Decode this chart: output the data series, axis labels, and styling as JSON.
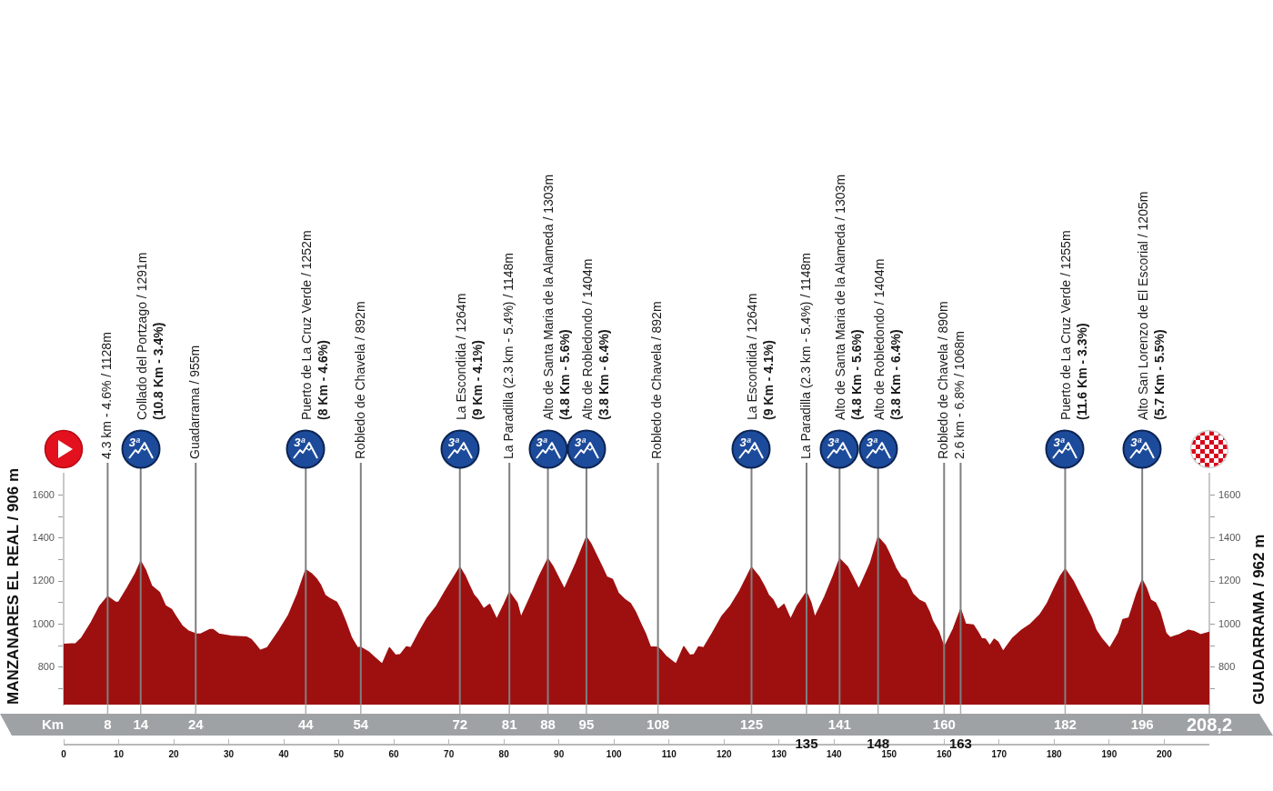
{
  "chart_data": {
    "type": "area",
    "color": "#9e1010",
    "ylabel": "MANZANARES EL REAL / 906 m",
    "y2label": "GUADARRAMA / 962 m",
    "x2label": "Km",
    "x": [
      0,
      2.2,
      3.3,
      5.0,
      6.6,
      8,
      9.4,
      10.0,
      11.6,
      13.0,
      14,
      14.9,
      16.0,
      17.4,
      18.5,
      19.6,
      20.4,
      21.5,
      22.6,
      24,
      24.9,
      26.6,
      27.1,
      28.2,
      30.4,
      33.2,
      34.0,
      34.8,
      35.7,
      37.0,
      39.2,
      40.9,
      42.5,
      44,
      45.1,
      45.9,
      46.7,
      47.5,
      48.3,
      49.6,
      50.4,
      51.2,
      52.3,
      53.4,
      54,
      55.4,
      56.2,
      57.9,
      59.2,
      60.3,
      61.2,
      62.3,
      63.1,
      64.5,
      66.1,
      67.8,
      69.4,
      72,
      72.9,
      73.7,
      74.5,
      75.3,
      76.3,
      77.4,
      78.7,
      79.9,
      81,
      82.4,
      83.1,
      84.8,
      86.5,
      88,
      88.9,
      90.0,
      91.0,
      93.1,
      95,
      95.8,
      96.6,
      97.8,
      98.7,
      99.7,
      100.8,
      101.9,
      103.0,
      103.9,
      104.9,
      105.8,
      106.6,
      108,
      108.5,
      109.4,
      111.3,
      112.7,
      113.8,
      114.6,
      115.4,
      116.3,
      117.9,
      119.6,
      121.2,
      122.9,
      125,
      126.4,
      127.3,
      128.1,
      128.9,
      129.8,
      130.9,
      132.1,
      133.3,
      135,
      135.8,
      136.5,
      138.3,
      139.9,
      141,
      142.4,
      143.4,
      144.5,
      146.6,
      148,
      149.3,
      150.1,
      151.2,
      152.2,
      153.1,
      154.3,
      155.4,
      156.5,
      157.3,
      157.9,
      159.0,
      160,
      161.7,
      163,
      163.9,
      165.3,
      166.1,
      166.8,
      167.5,
      168.3,
      169.1,
      169.8,
      170.7,
      172.4,
      174.1,
      175.7,
      177.4,
      178.8,
      180.1,
      181.2,
      182,
      183.5,
      184.6,
      185.7,
      186.8,
      187.6,
      188.7,
      190.1,
      191.7,
      192.5,
      193.6,
      195.0,
      196,
      196.7,
      197.5,
      198.4,
      199.2,
      200.3,
      201.1,
      201.9,
      202.7,
      204.4,
      205.5,
      206.6,
      208.2
    ],
    "values": [
      906,
      909,
      937,
      1007,
      1085,
      1128,
      1102,
      1102,
      1170,
      1233,
      1291,
      1250,
      1177,
      1148,
      1085,
      1068,
      1036,
      993,
      969,
      955,
      954,
      975,
      975,
      954,
      944,
      940,
      930,
      907,
      878,
      890,
      972,
      1043,
      1141,
      1252,
      1233,
      1212,
      1181,
      1134,
      1120,
      1102,
      1064,
      1014,
      937,
      890,
      892,
      871,
      852,
      814,
      890,
      855,
      859,
      895,
      890,
      958,
      1029,
      1085,
      1156,
      1264,
      1226,
      1181,
      1137,
      1113,
      1071,
      1092,
      1022,
      1085,
      1148,
      1099,
      1031,
      1127,
      1226,
      1303,
      1268,
      1212,
      1163,
      1283,
      1404,
      1374,
      1332,
      1268,
      1219,
      1209,
      1144,
      1116,
      1096,
      1057,
      1000,
      951,
      895,
      892,
      880,
      852,
      814,
      895,
      855,
      859,
      895,
      890,
      958,
      1036,
      1085,
      1156,
      1264,
      1219,
      1177,
      1134,
      1113,
      1068,
      1092,
      1022,
      1085,
      1148,
      1099,
      1031,
      1127,
      1226,
      1303,
      1268,
      1219,
      1163,
      1283,
      1404,
      1367,
      1325,
      1261,
      1219,
      1205,
      1141,
      1113,
      1099,
      1057,
      1014,
      965,
      890,
      979,
      1068,
      1000,
      996,
      965,
      933,
      930,
      899,
      930,
      916,
      873,
      933,
      972,
      1000,
      1043,
      1099,
      1170,
      1226,
      1255,
      1198,
      1141,
      1085,
      1029,
      972,
      930,
      888,
      958,
      1021,
      1029,
      1141,
      1205,
      1170,
      1113,
      1099,
      1057,
      958,
      937,
      944,
      951,
      972,
      965,
      951,
      962
    ],
    "xlim": [
      0,
      208.2
    ],
    "xticks": [
      0,
      10,
      20,
      30,
      40,
      50,
      60,
      70,
      80,
      90,
      100,
      110,
      120,
      130,
      140,
      150,
      160,
      170,
      180,
      190,
      200
    ],
    "x2lim": [
      0,
      208.2
    ],
    "x2ticks": [
      8,
      14,
      24,
      44,
      54,
      72,
      81,
      88,
      95,
      108,
      125,
      141,
      160,
      182,
      196,
      {
        "value": 208.2,
        "label": "208,2"
      }
    ],
    "ylim": [
      626,
      1700
    ],
    "yticks": [
      {
        "value": 700,
        "label": null
      },
      800,
      {
        "value": 900,
        "label": null
      },
      1000,
      {
        "value": 1100,
        "label": null
      },
      1200,
      {
        "value": 1300,
        "label": null
      },
      1400,
      {
        "value": 1500,
        "label": null
      },
      1600
    ],
    "y2lim": [
      626,
      1700
    ],
    "y2ticks": [
      {
        "value": 700,
        "label": null
      },
      800,
      {
        "value": 900,
        "label": null
      },
      1000,
      {
        "value": 1100,
        "label": null
      },
      1200,
      {
        "value": 1300,
        "label": null
      },
      1400,
      {
        "value": 1500,
        "label": null
      },
      1600
    ],
    "ref_lines": [
      {
        "axis": "x",
        "value": 8,
        "label": "4.3 km - 4.6% / 1128m",
        "color": "#7f7f7f"
      },
      {
        "axis": "x",
        "value": 14,
        "label": "Collado del Portzago / 1291m\n(10.8 Km - 3.4%)",
        "color": "#7f7f7f"
      },
      {
        "axis": "x",
        "value": 24,
        "label": "Guadarrama / 955m",
        "color": "#7f7f7f"
      },
      {
        "axis": "x",
        "value": 44,
        "label": "Puerto de La Cruz Verde / 1252m\n(8 Km - 4.6%)",
        "color": "#7f7f7f"
      },
      {
        "axis": "x",
        "value": 54,
        "label": "Robledo de Chavela / 892m",
        "color": "#7f7f7f"
      },
      {
        "axis": "x",
        "value": 72,
        "label": "La Escondida / 1264m\n(9 Km - 4.1%)",
        "color": "#7f7f7f"
      },
      {
        "axis": "x",
        "value": 81,
        "label": "La Paradilla (2.3 km - 5.4%) / 1148m",
        "color": "#7f7f7f"
      },
      {
        "axis": "x",
        "value": 88,
        "label": "Alto de Santa Maria de la Alameda / 1303m\n(4.8 Km - 5.6%)",
        "color": "#7f7f7f"
      },
      {
        "axis": "x",
        "value": 95,
        "label": "Alto de Robledondo / 1404m\n(3.8 Km - 6.4%)",
        "color": "#7f7f7f"
      },
      {
        "axis": "x",
        "value": 108,
        "label": "Robledo de Chavela / 892m",
        "color": "#7f7f7f"
      },
      {
        "axis": "x",
        "value": 125,
        "label": "La Escondida / 1264m\n(9 Km - 4.1%)",
        "color": "#7f7f7f"
      },
      {
        "axis": "x",
        "value": 135,
        "label": "La Paradilla (2.3 km - 5.4%) / 1148m",
        "color": "#7f7f7f"
      },
      {
        "axis": "x",
        "value": 141,
        "label": "Alto de Santa Maria de la Alameda / 1303m\n(4.8 Km - 5.6%)",
        "color": "#7f7f7f"
      },
      {
        "axis": "x",
        "value": 148,
        "label": "Alto de Robledondo / 1404m\n(3.8 Km - 6.4%)",
        "color": "#7f7f7f"
      },
      {
        "axis": "x",
        "value": 160,
        "label": "Robledo de Chavela / 890m",
        "color": "#7f7f7f"
      },
      {
        "axis": "x",
        "value": 163,
        "label": "2.6 km - 6.8% / 1068m",
        "color": "#7f7f7f"
      },
      {
        "axis": "x",
        "value": 182,
        "label": "Puerto de La Cruz Verde / 1255m\n(11.6 Km - 3.3%)",
        "color": "#7f7f7f"
      },
      {
        "axis": "x",
        "value": 196,
        "label": "Alto San Lorenzo de El Escorial / 1205m\n(5.7 Km - 5.5%)",
        "color": "#7f7f7f"
      }
    ],
    "annotations": [
      "3ª",
      "3ª",
      "3ª",
      "3ª",
      "3ª",
      "3ª",
      "3ª",
      "3ª",
      "3ª",
      "3ª",
      "135",
      "148",
      "163"
    ]
  }
}
